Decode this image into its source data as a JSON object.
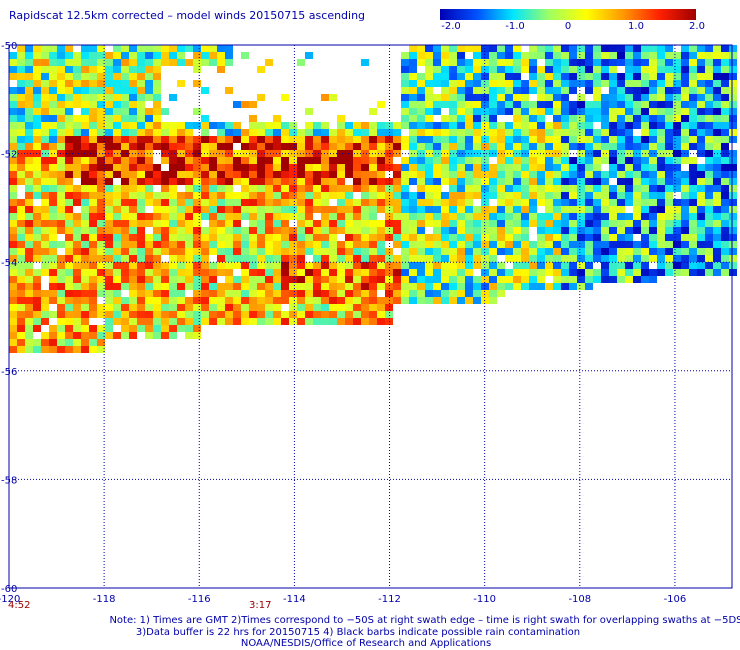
{
  "title": "Rapidscat 12.5km corrected – model winds 20150715 ascending",
  "colorbar": {
    "labels": [
      "-2.0",
      "-1.0",
      "0",
      "1.0",
      "2.0"
    ],
    "range": [
      -2.0,
      2.0
    ],
    "stops": [
      "#0000b4",
      "#0050ff",
      "#00e6ff",
      "#a0ff60",
      "#ffff00",
      "#ff9900",
      "#ff2000",
      "#a00000"
    ]
  },
  "map": {
    "lat_labels": [
      "-50",
      "-52",
      "-54",
      "-56",
      "-58",
      "-60"
    ],
    "lon_labels": [
      "-120",
      "-118",
      "-116",
      "-114",
      "-112",
      "-110",
      "-108",
      "-106"
    ],
    "lat_range": [
      -60,
      -50
    ],
    "lon_range": [
      -120,
      -104.8
    ],
    "grid_color": "#0000aa"
  },
  "time_labels": [
    "4:52",
    "3:17"
  ],
  "notes": [
    "Note: 1) Times are GMT 2)Times correspond to −50S at right swath edge – time is right swath for overlapping swaths at −5DS",
    "3)Data buffer is 22 hrs for 20150715 4) Black barbs indicate possible rain contamination",
    "NOAA/NESDIS/Office of Research and Applications"
  ]
}
